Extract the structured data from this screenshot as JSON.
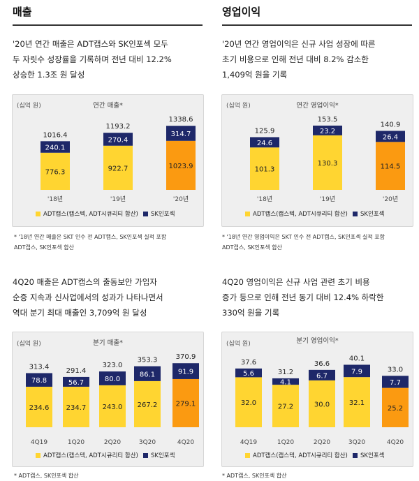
{
  "colors": {
    "adt": "#ffd531",
    "adt_hl": "#fb9a11",
    "sk": "#1e2869",
    "text_dark": "#222222"
  },
  "sections": {
    "sales": {
      "heading": "매출",
      "description": "'20년 연간 매출은 ADT캡스와 SK인포섹 모두\n두 자릿수 성장률을 기록하며 전년 대비 12.2%\n상승한 1.3조 원 달성",
      "footnote": "* '18년 연간 매출은 SKT 인수 전 ADT캡스, SK인포섹 실적 포함\n  ADT캡스, SK인포섹 합산"
    },
    "op": {
      "heading": "영업이익",
      "description": "'20년 연간 영업이익은 신규 사업 성장에 따른\n초기 비용으로 인해 전년 대비 8.2% 감소한\n1,409억 원을 기록",
      "footnote": "* '18년 연간 영업이익은 SKT 인수 전 ADT캡스, SK인포섹 실적 포함\n  ADT캡스, SK인포섹 합산"
    },
    "qsales": {
      "description": "4Q20 매출은 ADT캡스의 출동보안 가입자\n순증 지속과 신사업에서의 성과가 나타나면서\n역대 분기 최대 매출인 3,709억 원 달성",
      "footnote": "* ADT캡스, SK인포섹 합산"
    },
    "qop": {
      "description": "4Q20 영업이익은 신규 사업 관련 초기 비용\n증가 등으로 인해 전년 동기 대비 12.4% 하락한\n330억 원을 기록",
      "footnote": "* ADT캡스, SK인포섹 합산"
    }
  },
  "legend": {
    "adt": "ADT캡스(캡스텍, ADT시큐리티 합산)",
    "sk": "SK인포섹"
  },
  "chart_data": [
    {
      "id": "annual_sales",
      "type": "bar",
      "stacked": true,
      "title": "연간 매출*",
      "unit": "(십억 원)",
      "categories": [
        "'18년",
        "'19년",
        "'20년"
      ],
      "series": [
        {
          "name": "ADT캡스(캡스텍, ADT시큐리티 합산)",
          "values": [
            776.3,
            922.7,
            1023.9
          ]
        },
        {
          "name": "SK인포섹",
          "values": [
            240.1,
            270.4,
            314.7
          ]
        }
      ],
      "totals": [
        1016.4,
        1193.2,
        1338.6
      ],
      "highlight_index": 2,
      "ylim": [
        0,
        1400
      ]
    },
    {
      "id": "annual_op",
      "type": "bar",
      "stacked": true,
      "title": "연간 영업이익*",
      "unit": "(십억 원)",
      "categories": [
        "'18년",
        "'19년",
        "'20년"
      ],
      "series": [
        {
          "name": "ADT캡스(캡스텍, ADT시큐리티 합산)",
          "values": [
            101.3,
            130.3,
            114.5
          ]
        },
        {
          "name": "SK인포섹",
          "values": [
            24.6,
            23.2,
            26.4
          ]
        }
      ],
      "totals": [
        125.9,
        153.5,
        140.9
      ],
      "highlight_index": 2,
      "ylim": [
        0,
        160
      ]
    },
    {
      "id": "quarterly_sales",
      "type": "bar",
      "stacked": true,
      "title": "분기 매출*",
      "unit": "(십억 원)",
      "categories": [
        "4Q19",
        "1Q20",
        "2Q20",
        "3Q20",
        "4Q20"
      ],
      "series": [
        {
          "name": "ADT캡스(캡스텍, ADT시큐리티 합산)",
          "values": [
            234.6,
            234.7,
            243.0,
            267.2,
            279.1
          ]
        },
        {
          "name": "SK인포섹",
          "values": [
            78.8,
            56.7,
            80.0,
            86.1,
            91.9
          ]
        }
      ],
      "totals": [
        313.4,
        291.4,
        323.0,
        353.3,
        370.9
      ],
      "highlight_index": 4,
      "ylim": [
        0,
        380
      ]
    },
    {
      "id": "quarterly_op",
      "type": "bar",
      "stacked": true,
      "title": "분기 영업이익*",
      "unit": "(십억 원)",
      "categories": [
        "4Q19",
        "1Q20",
        "2Q20",
        "3Q20",
        "4Q20"
      ],
      "series": [
        {
          "name": "ADT캡스(캡스텍, ADT시큐리티 합산)",
          "values": [
            32.0,
            27.2,
            30.0,
            32.1,
            25.2
          ]
        },
        {
          "name": "SK인포섹",
          "values": [
            5.6,
            4.1,
            6.7,
            7.9,
            7.7
          ]
        }
      ],
      "totals": [
        37.6,
        31.2,
        36.6,
        40.1,
        33.0
      ],
      "highlight_index": 4,
      "ylim": [
        0,
        42
      ]
    }
  ]
}
